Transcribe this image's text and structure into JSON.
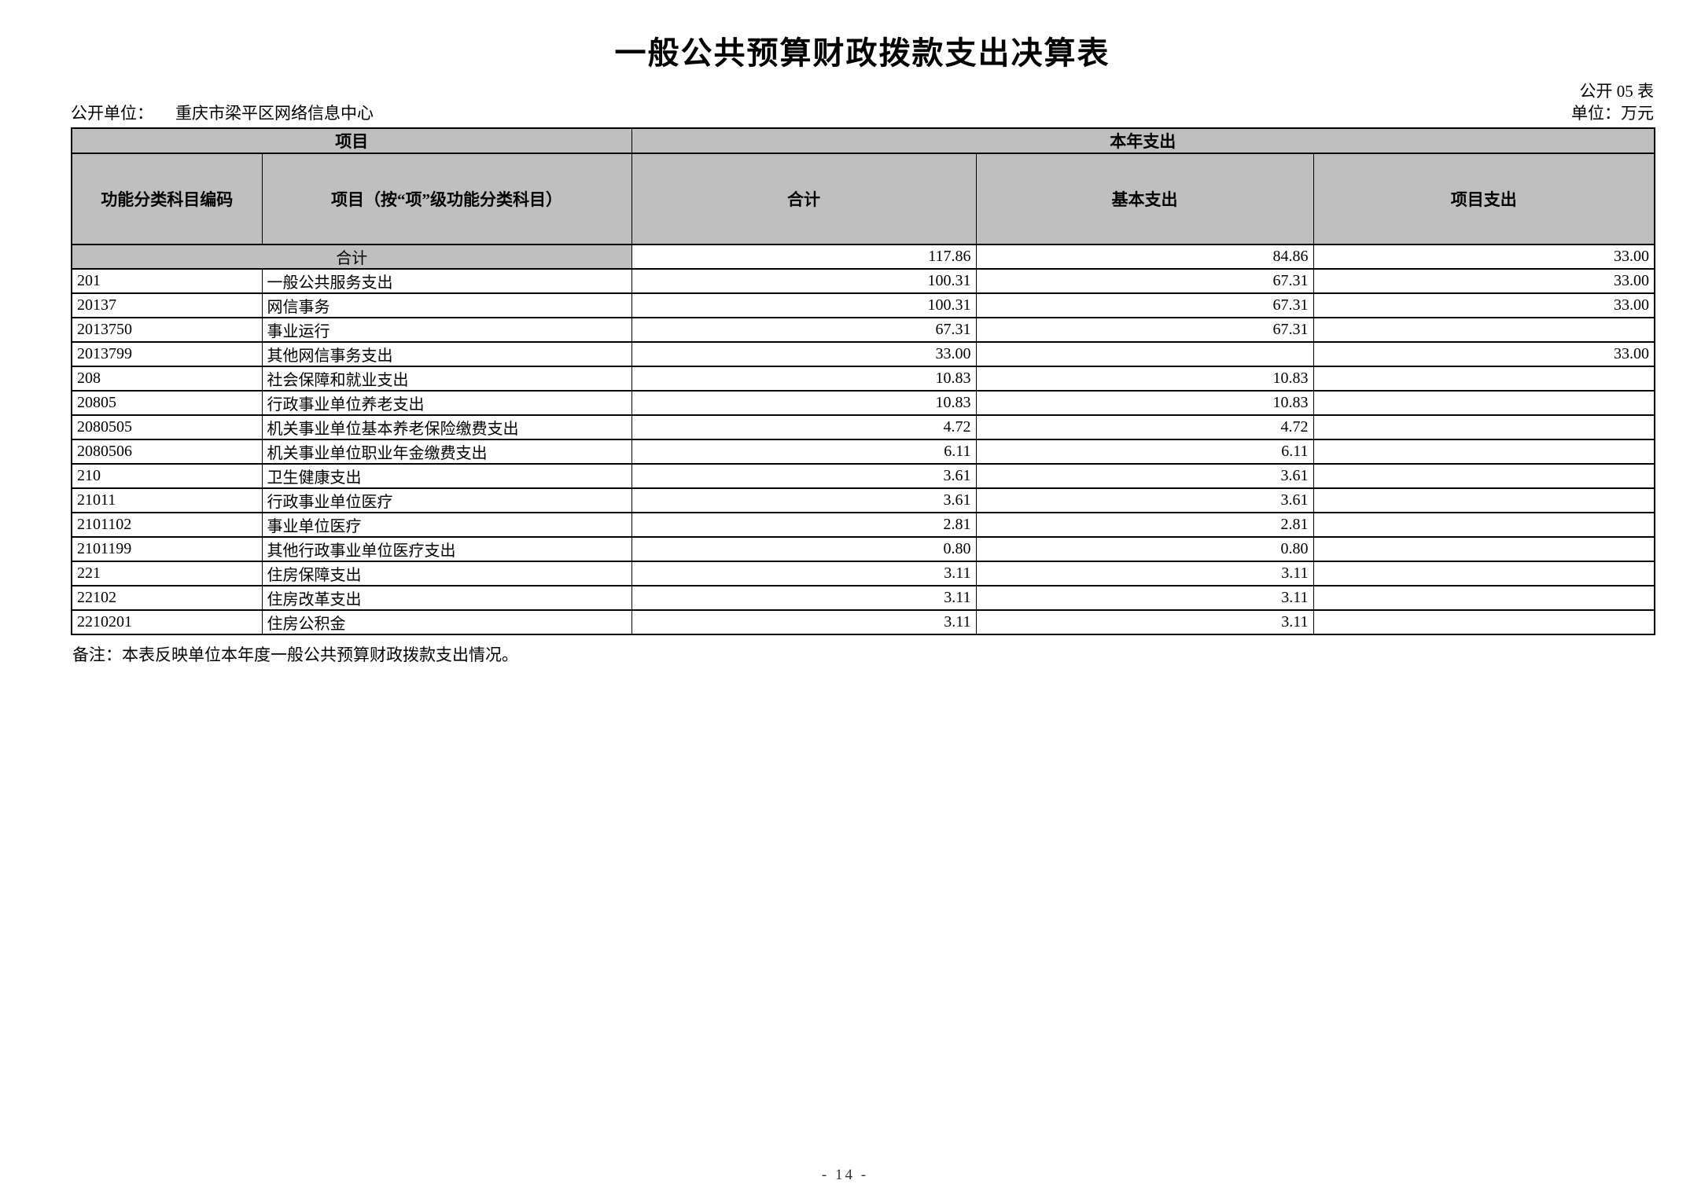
{
  "page": {
    "title": "一般公共预算财政拨款支出决算表",
    "table_code": "公开 05 表",
    "unit_label": "公开单位：",
    "unit_value": "重庆市梁平区网络信息中心",
    "money_unit": "单位：万元",
    "note": "备注：本表反映单位本年度一般公共预算财政拨款支出情况。",
    "page_number": "- 14 -"
  },
  "table": {
    "header": {
      "group_project": "项目",
      "group_current_year": "本年支出",
      "col_code": "功能分类科目编码",
      "col_item": "项目（按“项”级功能分类科目）",
      "col_total": "合计",
      "col_basic": "基本支出",
      "col_project": "项目支出"
    },
    "total_row": {
      "label": "合计",
      "total": "117.86",
      "basic": "84.86",
      "project": "33.00"
    },
    "rows": [
      {
        "code": "201",
        "name": "一般公共服务支出",
        "total": "100.31",
        "basic": "67.31",
        "project": "33.00",
        "bold": true
      },
      {
        "code": "20137",
        "name": "网信事务",
        "total": "100.31",
        "basic": "67.31",
        "project": "33.00",
        "bold": true
      },
      {
        "code": "2013750",
        "name": "事业运行",
        "total": "67.31",
        "basic": "67.31",
        "project": "",
        "bold": false
      },
      {
        "code": "2013799",
        "name": "其他网信事务支出",
        "total": "33.00",
        "basic": "",
        "project": "33.00",
        "bold": false
      },
      {
        "code": "208",
        "name": "社会保障和就业支出",
        "total": "10.83",
        "basic": "10.83",
        "project": "",
        "bold": true
      },
      {
        "code": "20805",
        "name": "行政事业单位养老支出",
        "total": "10.83",
        "basic": "10.83",
        "project": "",
        "bold": true
      },
      {
        "code": "2080505",
        "name": "机关事业单位基本养老保险缴费支出",
        "total": "4.72",
        "basic": "4.72",
        "project": "",
        "bold": false
      },
      {
        "code": "2080506",
        "name": "机关事业单位职业年金缴费支出",
        "total": "6.11",
        "basic": "6.11",
        "project": "",
        "bold": false
      },
      {
        "code": "210",
        "name": "卫生健康支出",
        "total": "3.61",
        "basic": "3.61",
        "project": "",
        "bold": true
      },
      {
        "code": "21011",
        "name": "行政事业单位医疗",
        "total": "3.61",
        "basic": "3.61",
        "project": "",
        "bold": true
      },
      {
        "code": "2101102",
        "name": "事业单位医疗",
        "total": "2.81",
        "basic": "2.81",
        "project": "",
        "bold": false
      },
      {
        "code": "2101199",
        "name": "其他行政事业单位医疗支出",
        "total": "0.80",
        "basic": "0.80",
        "project": "",
        "bold": false
      },
      {
        "code": "221",
        "name": "住房保障支出",
        "total": "3.11",
        "basic": "3.11",
        "project": "",
        "bold": true
      },
      {
        "code": "22102",
        "name": "住房改革支出",
        "total": "3.11",
        "basic": "3.11",
        "project": "",
        "bold": true
      },
      {
        "code": "2210201",
        "name": "住房公积金",
        "total": "3.11",
        "basic": "3.11",
        "project": "",
        "bold": false
      }
    ]
  },
  "colors": {
    "header_bg": "#bfbfbf",
    "border": "#000000"
  }
}
